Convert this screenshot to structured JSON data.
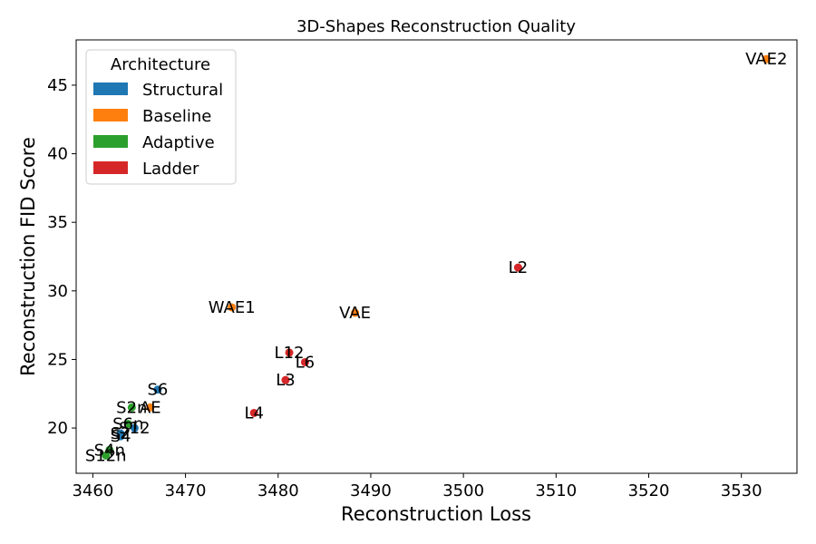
{
  "chart_data": {
    "type": "scatter",
    "title": "3D-Shapes Reconstruction Quality",
    "xlabel": "Reconstruction Loss",
    "ylabel": "Reconstruction FID Score",
    "xlim": [
      3458.2,
      3536.0
    ],
    "ylim": [
      16.7,
      48.3
    ],
    "xticks": [
      3460,
      3470,
      3480,
      3490,
      3500,
      3510,
      3520,
      3530
    ],
    "yticks": [
      20,
      25,
      30,
      35,
      40,
      45
    ],
    "grid": false,
    "legend": {
      "title": "Architecture",
      "placement": "top-left",
      "entries": [
        "Structural",
        "Baseline",
        "Adaptive",
        "Ladder"
      ]
    },
    "colors": {
      "Structural": "#1f77b4",
      "Baseline": "#ff7f0e",
      "Adaptive": "#2ca02c",
      "Ladder": "#d62728"
    },
    "series": [
      {
        "name": "Structural",
        "points": [
          {
            "label": "S6",
            "x": 3467.0,
            "y": 22.8
          },
          {
            "label": "S12",
            "x": 3464.5,
            "y": 20.0
          },
          {
            "label": "S4",
            "x": 3463.0,
            "y": 19.4
          },
          {
            "label": "S2",
            "x": 3463.0,
            "y": 19.6
          }
        ]
      },
      {
        "name": "Baseline",
        "points": [
          {
            "label": "VAE2",
            "x": 3532.7,
            "y": 46.9
          },
          {
            "label": "WAE1",
            "x": 3475.0,
            "y": 28.8
          },
          {
            "label": "VAE",
            "x": 3488.3,
            "y": 28.4
          },
          {
            "label": "AE",
            "x": 3466.2,
            "y": 21.5
          }
        ]
      },
      {
        "name": "Adaptive",
        "points": [
          {
            "label": "S2n",
            "x": 3464.2,
            "y": 21.5
          },
          {
            "label": "S6n",
            "x": 3463.8,
            "y": 20.3
          },
          {
            "label": "S4n",
            "x": 3461.8,
            "y": 18.4
          },
          {
            "label": "S12n",
            "x": 3461.4,
            "y": 18.0
          }
        ]
      },
      {
        "name": "Ladder",
        "points": [
          {
            "label": "L2",
            "x": 3505.9,
            "y": 31.7
          },
          {
            "label": "L12",
            "x": 3481.2,
            "y": 25.5
          },
          {
            "label": "L6",
            "x": 3482.9,
            "y": 24.8
          },
          {
            "label": "L3",
            "x": 3480.8,
            "y": 23.5
          },
          {
            "label": "L4",
            "x": 3477.4,
            "y": 21.1
          }
        ]
      }
    ]
  }
}
